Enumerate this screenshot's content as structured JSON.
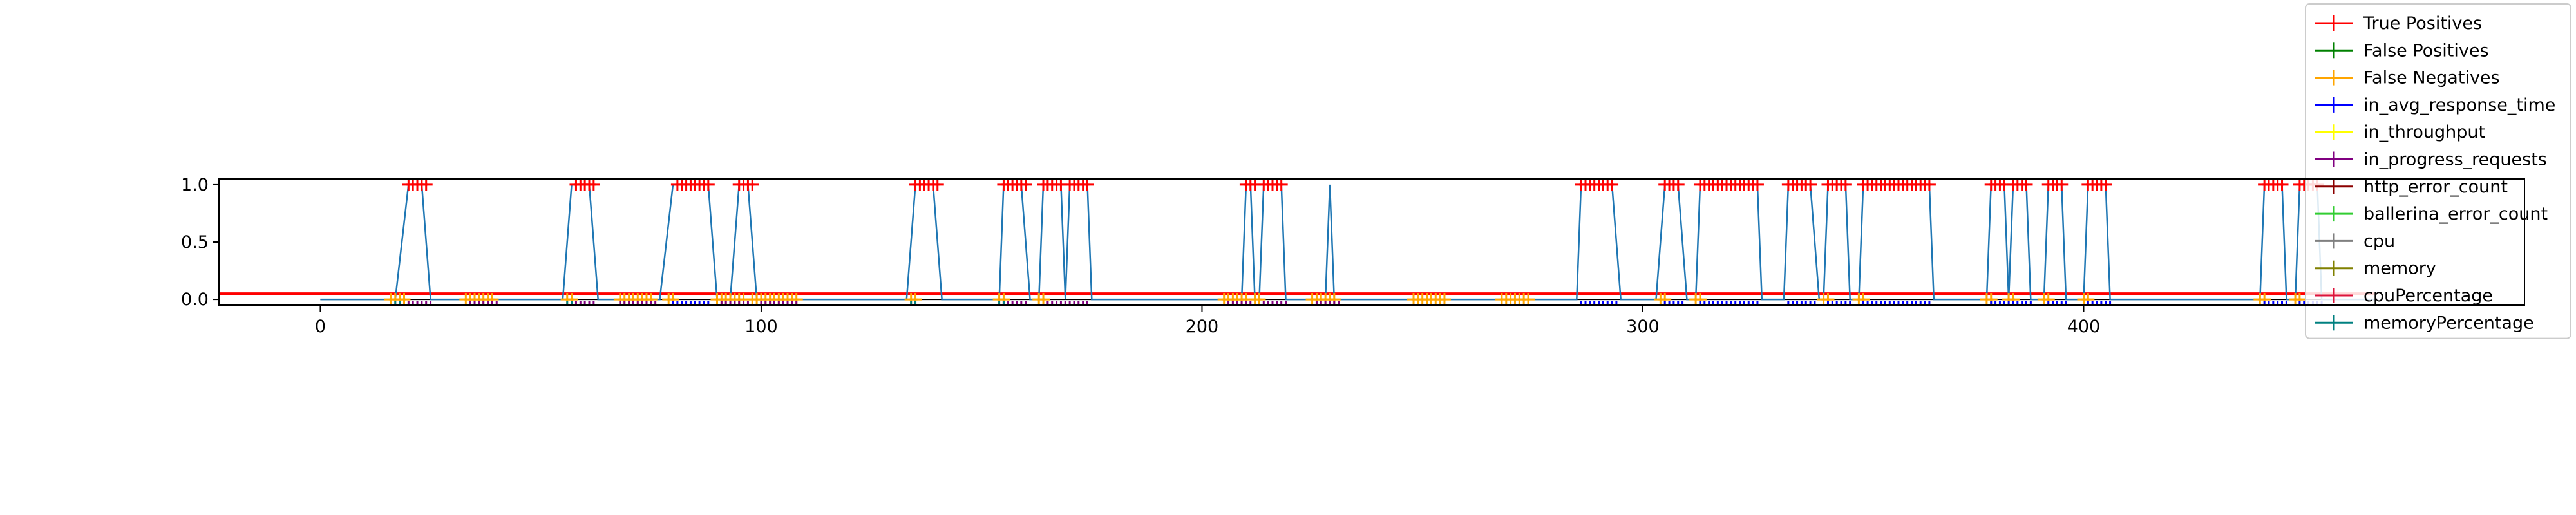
{
  "chart_data": {
    "type": "line",
    "title": "",
    "xlabel": "",
    "ylabel": "",
    "xlim": [
      -23,
      500
    ],
    "ylim": [
      -0.05,
      1.05
    ],
    "x_ticks": [
      0,
      100,
      200,
      300,
      400
    ],
    "y_ticks": [
      0.0,
      0.5,
      1.0
    ],
    "x_tick_labels": [
      "0",
      "100",
      "200",
      "300",
      "400"
    ],
    "y_tick_labels": [
      "0.0",
      "0.5",
      "1.0"
    ],
    "grid": false,
    "legend_position": "upper-right",
    "anomaly_score_segments": [
      [
        0,
        0.0
      ],
      [
        17,
        0.0
      ],
      [
        20,
        1.0
      ],
      [
        23,
        1.0
      ],
      [
        25,
        0.0
      ],
      [
        55,
        0.0
      ],
      [
        57,
        1.0
      ],
      [
        61,
        1.0
      ],
      [
        63,
        0.0
      ],
      [
        77,
        0.0
      ],
      [
        80,
        1.0
      ],
      [
        88,
        1.0
      ],
      [
        90,
        0.0
      ],
      [
        93,
        0.0
      ],
      [
        95,
        1.0
      ],
      [
        97,
        1.0
      ],
      [
        99,
        0.0
      ],
      [
        133,
        0.0
      ],
      [
        135,
        1.0
      ],
      [
        139,
        1.0
      ],
      [
        141,
        0.0
      ],
      [
        154,
        0.0
      ],
      [
        155,
        1.0
      ],
      [
        159,
        1.0
      ],
      [
        161,
        0.0
      ],
      [
        163,
        0.0
      ],
      [
        164,
        1.0
      ],
      [
        168,
        1.0
      ],
      [
        169,
        0.0
      ],
      [
        170,
        1.0
      ],
      [
        174,
        1.0
      ],
      [
        175,
        0.0
      ],
      [
        209,
        0.0
      ],
      [
        210,
        1.0
      ],
      [
        211,
        1.0
      ],
      [
        212,
        0.0
      ],
      [
        213,
        0.0
      ],
      [
        214,
        1.0
      ],
      [
        218,
        1.0
      ],
      [
        219,
        0.0
      ],
      [
        228,
        0.0
      ],
      [
        229,
        1.0
      ],
      [
        230,
        0.0
      ],
      [
        285,
        0.0
      ],
      [
        286,
        1.0
      ],
      [
        293,
        1.0
      ],
      [
        295,
        0.0
      ],
      [
        303,
        0.0
      ],
      [
        305,
        1.0
      ],
      [
        308,
        1.0
      ],
      [
        310,
        0.0
      ],
      [
        312,
        0.0
      ],
      [
        313,
        1.0
      ],
      [
        326,
        1.0
      ],
      [
        327,
        0.0
      ],
      [
        332,
        0.0
      ],
      [
        333,
        1.0
      ],
      [
        338,
        1.0
      ],
      [
        340,
        0.0
      ],
      [
        341,
        0.0
      ],
      [
        342,
        1.0
      ],
      [
        346,
        1.0
      ],
      [
        347,
        0.0
      ],
      [
        349,
        0.0
      ],
      [
        350,
        1.0
      ],
      [
        365,
        1.0
      ],
      [
        366,
        0.0
      ],
      [
        378,
        0.0
      ],
      [
        379,
        1.0
      ],
      [
        382,
        1.0
      ],
      [
        383,
        0.0
      ],
      [
        384,
        1.0
      ],
      [
        387,
        1.0
      ],
      [
        388,
        0.0
      ],
      [
        391,
        0.0
      ],
      [
        392,
        1.0
      ],
      [
        395,
        1.0
      ],
      [
        396,
        0.0
      ],
      [
        400,
        0.0
      ],
      [
        401,
        1.0
      ],
      [
        405,
        1.0
      ],
      [
        406,
        0.0
      ],
      [
        440,
        0.0
      ],
      [
        441,
        1.0
      ],
      [
        445,
        1.0
      ],
      [
        446,
        0.0
      ],
      [
        448,
        0.0
      ],
      [
        449,
        1.0
      ],
      [
        453,
        1.0
      ],
      [
        454,
        0.0
      ],
      [
        466,
        0.0
      ]
    ],
    "threshold": 0.05,
    "threshold_xlim": [
      -23,
      466
    ],
    "baseline_xlim": [
      0,
      466
    ],
    "true_positive_ranges": [
      [
        20,
        24
      ],
      [
        58,
        62
      ],
      [
        81,
        88
      ],
      [
        95,
        98
      ],
      [
        135,
        140
      ],
      [
        155,
        160
      ],
      [
        164,
        168
      ],
      [
        170,
        174
      ],
      [
        210,
        212
      ],
      [
        214,
        218
      ],
      [
        286,
        293
      ],
      [
        305,
        308
      ],
      [
        313,
        326
      ],
      [
        333,
        338
      ],
      [
        342,
        346
      ],
      [
        350,
        365
      ],
      [
        379,
        382
      ],
      [
        384,
        387
      ],
      [
        392,
        395
      ],
      [
        401,
        405
      ],
      [
        441,
        445
      ],
      [
        449,
        453
      ]
    ],
    "false_negative_ranges": [
      [
        16,
        19
      ],
      [
        33,
        39
      ],
      [
        56,
        57
      ],
      [
        68,
        75
      ],
      [
        79,
        80
      ],
      [
        90,
        96
      ],
      [
        98,
        108
      ],
      [
        134,
        135
      ],
      [
        154,
        155
      ],
      [
        163,
        164
      ],
      [
        205,
        210
      ],
      [
        212,
        213
      ],
      [
        225,
        230
      ],
      [
        248,
        255
      ],
      [
        268,
        274
      ],
      [
        304,
        305
      ],
      [
        312,
        313
      ],
      [
        341,
        342
      ],
      [
        349,
        350
      ],
      [
        378,
        379
      ],
      [
        383,
        384
      ],
      [
        391,
        392
      ],
      [
        400,
        401
      ],
      [
        440,
        441
      ],
      [
        448,
        449
      ]
    ],
    "series": [
      {
        "name": "True Positives",
        "color": "#ff0000"
      },
      {
        "name": "False Positives",
        "color": "#008000"
      },
      {
        "name": "False Negatives",
        "color": "#ffa500"
      },
      {
        "name": "in_avg_response_time",
        "color": "#0000ff",
        "ranges": [
          [
            80,
            88
          ],
          [
            286,
            294
          ],
          [
            305,
            309
          ],
          [
            313,
            326
          ],
          [
            333,
            339
          ],
          [
            342,
            347
          ],
          [
            350,
            365
          ],
          [
            379,
            388
          ],
          [
            392,
            396
          ],
          [
            401,
            406
          ],
          [
            441,
            446
          ],
          [
            449,
            454
          ]
        ]
      },
      {
        "name": "in_throughput",
        "color": "#ffff00",
        "ranges": []
      },
      {
        "name": "in_progress_requests",
        "color": "#800080",
        "ranges": [
          [
            20,
            25
          ],
          [
            34,
            40
          ],
          [
            58,
            62
          ],
          [
            68,
            76
          ],
          [
            91,
            97
          ],
          [
            100,
            108
          ],
          [
            155,
            160
          ],
          [
            165,
            174
          ],
          [
            206,
            211
          ],
          [
            214,
            219
          ],
          [
            226,
            231
          ]
        ]
      },
      {
        "name": "http_error_count",
        "color": "#8b0000",
        "ranges": []
      },
      {
        "name": "ballerina_error_count",
        "color": "#32cd32",
        "ranges": []
      },
      {
        "name": "cpu",
        "color": "#808080",
        "ranges": []
      },
      {
        "name": "memory",
        "color": "#808000",
        "ranges": []
      },
      {
        "name": "cpuPercentage",
        "color": "#dc143c",
        "ranges": []
      },
      {
        "name": "memoryPercentage",
        "color": "#008080",
        "ranges": [
          [
            17,
            18
          ],
          [
            56,
            57
          ],
          [
            134,
            135
          ],
          [
            154,
            155
          ]
        ]
      }
    ],
    "colors": {
      "score_line": "#1f77b4",
      "threshold_line": "#ff0000",
      "baseline": "#000000",
      "axes": "#000000"
    }
  }
}
